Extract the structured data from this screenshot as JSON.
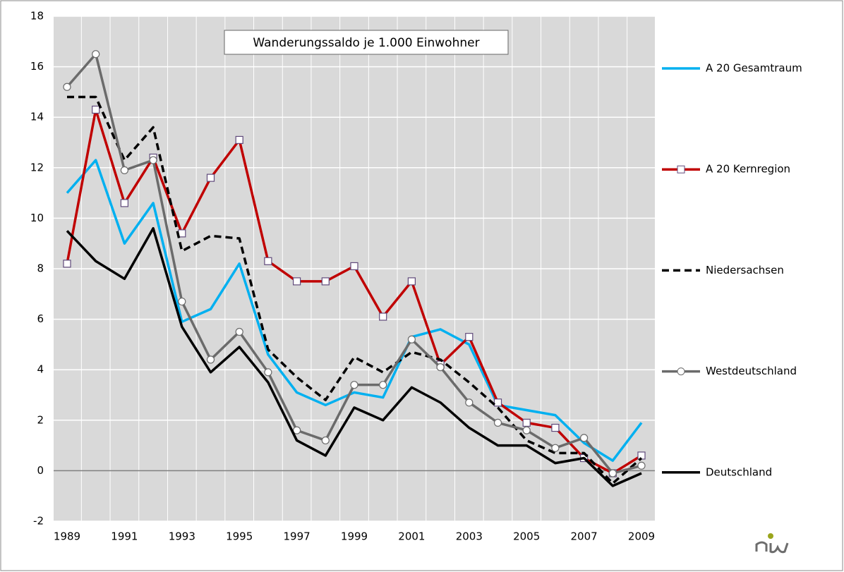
{
  "chart_data": {
    "type": "line",
    "title": "Wanderungssaldo je 1.000 Einwohner",
    "categories": [
      "1989",
      null,
      "1991",
      null,
      "1993",
      null,
      "1995",
      null,
      "1997",
      null,
      "1999",
      null,
      "2001",
      null,
      "2003",
      null,
      "2005",
      null,
      "2007",
      null,
      "2009"
    ],
    "series": [
      {
        "name": "A 20 Gesamtraum",
        "color": "#00b0f0",
        "dash": false,
        "marker": "none",
        "values": [
          11.0,
          12.3,
          9.0,
          10.6,
          5.9,
          6.4,
          8.2,
          4.6,
          3.1,
          2.6,
          3.1,
          2.9,
          5.3,
          5.6,
          5.0,
          2.6,
          2.4,
          2.2,
          1.1,
          0.4,
          1.9
        ]
      },
      {
        "name": "A 20 Kernregion",
        "color": "#c00000",
        "dash": false,
        "marker": "square",
        "values": [
          8.2,
          14.3,
          10.6,
          12.4,
          9.4,
          11.6,
          13.1,
          8.3,
          7.5,
          7.5,
          8.1,
          6.1,
          7.5,
          4.2,
          5.3,
          2.7,
          1.9,
          1.7,
          0.5,
          -0.1,
          0.6
        ]
      },
      {
        "name": "Niedersachsen",
        "color": "#000000",
        "dash": true,
        "marker": "none",
        "values": [
          14.8,
          14.8,
          12.3,
          13.6,
          8.7,
          9.3,
          9.2,
          4.8,
          3.7,
          2.8,
          4.5,
          3.9,
          4.7,
          4.4,
          3.5,
          2.5,
          1.2,
          0.7,
          0.7,
          -0.5,
          0.5
        ]
      },
      {
        "name": "Westdeutschland",
        "color": "#6b6b6b",
        "dash": false,
        "marker": "circle",
        "values": [
          15.2,
          16.5,
          11.9,
          12.3,
          6.7,
          4.4,
          5.5,
          3.9,
          1.6,
          1.2,
          3.4,
          3.4,
          5.2,
          4.1,
          2.7,
          1.9,
          1.6,
          0.9,
          1.3,
          -0.1,
          0.2
        ]
      },
      {
        "name": "Deutschland",
        "color": "#000000",
        "dash": false,
        "marker": "none",
        "values": [
          9.5,
          8.3,
          7.6,
          9.6,
          5.7,
          3.9,
          4.9,
          3.5,
          1.2,
          0.6,
          2.5,
          2.0,
          3.3,
          2.7,
          1.7,
          1.0,
          1.0,
          0.3,
          0.5,
          -0.6,
          -0.1
        ]
      }
    ],
    "ylim": [
      -2,
      18
    ],
    "yticks": [
      -2,
      0,
      2,
      4,
      6,
      8,
      10,
      12,
      14,
      16,
      18
    ],
    "grid": true,
    "legend": "right"
  }
}
